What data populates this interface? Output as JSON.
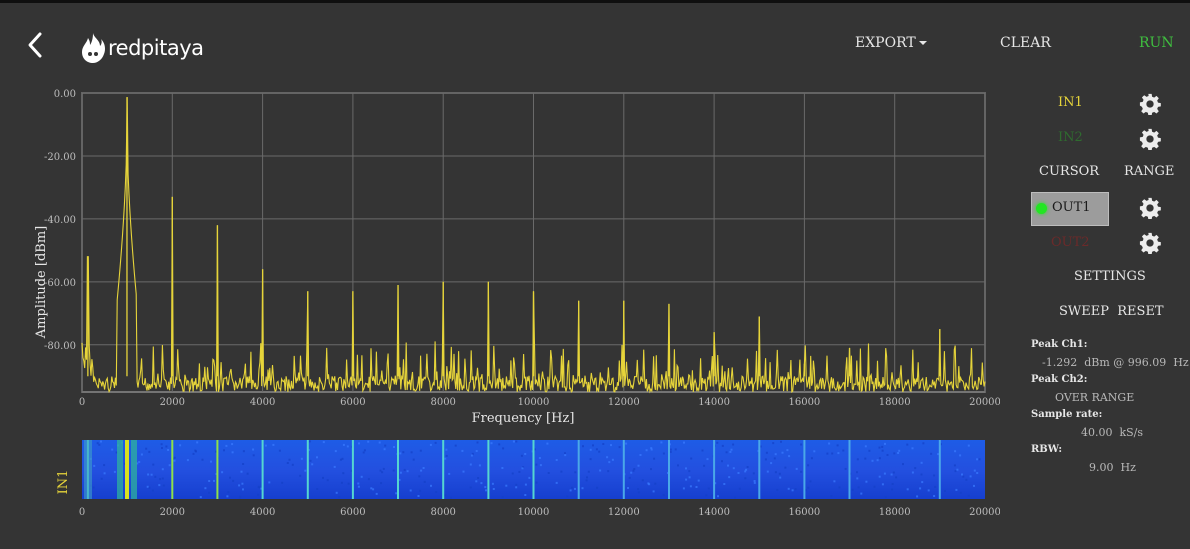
{
  "header": {
    "logo_text": "redpitaya",
    "export_label": "EXPORT",
    "clear_label": "CLEAR",
    "run_label": "RUN"
  },
  "channels": {
    "in1": {
      "label": "IN1",
      "color": "#e6d43a"
    },
    "in2": {
      "label": "IN2",
      "color": "#2f6b2f"
    },
    "out1": {
      "label": "OUT1",
      "color": "#22e622"
    },
    "out2": {
      "label": "OUT2",
      "color": "#6b2a2a"
    }
  },
  "panel": {
    "cursor_label": "CURSOR",
    "range_label": "RANGE",
    "settings_label": "SETTINGS",
    "sweep_reset_label": "SWEEP  RESET"
  },
  "info": {
    "peak_ch1_label": "Peak  Ch1:",
    "peak_ch1_value": "-1.292  dBm @ 996.09  Hz",
    "peak_ch2_label": "Peak  Ch2:",
    "peak_ch2_value": "OVER RANGE",
    "sample_rate_label": "Sample  rate:",
    "sample_rate_value": "40.00  kS/s",
    "rbw_label": "RBW:",
    "rbw_value": "9.00  Hz"
  },
  "chart_data": {
    "type": "line",
    "xlabel": "Frequency    [Hz]",
    "ylabel": "Amplitude  [dBm]",
    "xlim": [
      0,
      20000
    ],
    "ylim": [
      -95,
      0
    ],
    "x_ticks": [
      "0",
      "2000",
      "4000",
      "6000",
      "8000",
      "10000",
      "12000",
      "14000",
      "16000",
      "18000",
      "20000"
    ],
    "y_ticks": [
      "0.00",
      "-20.00",
      "-40.00",
      "-60.00",
      "-80.00"
    ],
    "grid": true,
    "series": [
      {
        "color": "#e6d43a",
        "noise_floor": -90,
        "peaks": [
          {
            "x": 130,
            "y": -52
          },
          {
            "x": 996,
            "y": -1.3
          },
          {
            "x": 2000,
            "y": -33
          },
          {
            "x": 3000,
            "y": -42
          },
          {
            "x": 4000,
            "y": -56
          },
          {
            "x": 5000,
            "y": -63
          },
          {
            "x": 6000,
            "y": -63
          },
          {
            "x": 7000,
            "y": -61
          },
          {
            "x": 8000,
            "y": -60
          },
          {
            "x": 9000,
            "y": -60
          },
          {
            "x": 10000,
            "y": -63
          },
          {
            "x": 11000,
            "y": -66
          },
          {
            "x": 12000,
            "y": -66
          },
          {
            "x": 13000,
            "y": -67
          },
          {
            "x": 14000,
            "y": -76
          },
          {
            "x": 15000,
            "y": -71
          },
          {
            "x": 16000,
            "y": -86
          },
          {
            "x": 17000,
            "y": -81
          },
          {
            "x": 19000,
            "y": -75
          }
        ]
      }
    ]
  },
  "waterfall": {
    "channel_label": "IN1",
    "x_ticks": [
      "0",
      "2000",
      "4000",
      "6000",
      "8000",
      "10000",
      "12000",
      "14000",
      "16000",
      "18000",
      "20000"
    ]
  }
}
